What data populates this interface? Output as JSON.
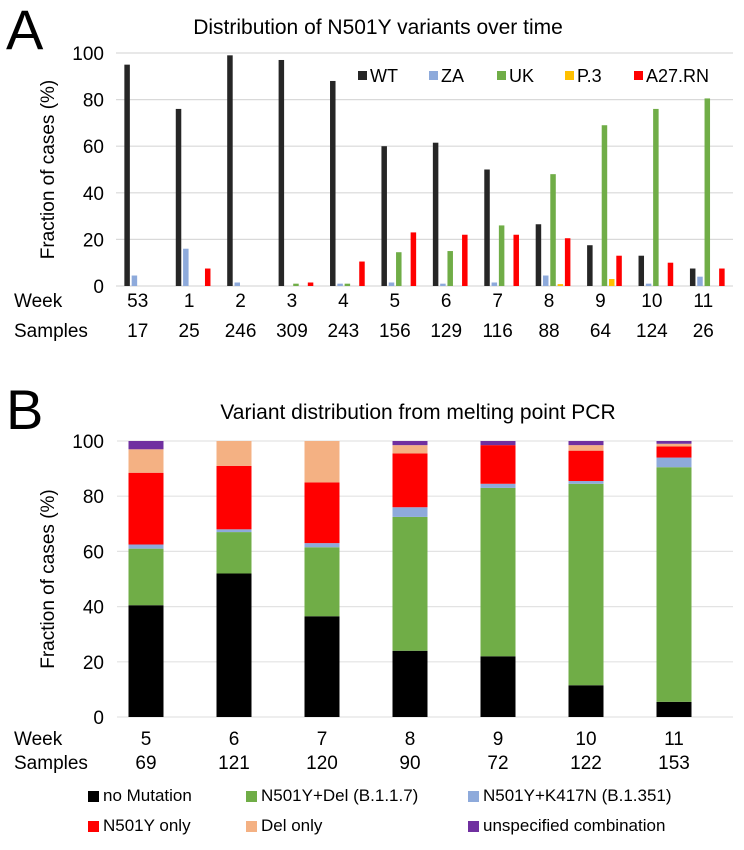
{
  "chart_data": [
    {
      "panel": "A",
      "type": "bar",
      "title": "Distribution of N501Y variants over time",
      "ylabel": "Fraction of cases (%)",
      "xlabel": "",
      "ylim": [
        0,
        100
      ],
      "yticks": [
        0,
        20,
        40,
        60,
        80,
        100
      ],
      "grid": true,
      "legend_position": "top-right",
      "row_labels": [
        "Week",
        "Samples"
      ],
      "categories": [
        "53",
        "1",
        "2",
        "3",
        "4",
        "5",
        "6",
        "7",
        "8",
        "9",
        "10",
        "11"
      ],
      "samples": [
        "17",
        "25",
        "246",
        "309",
        "243",
        "156",
        "129",
        "116",
        "88",
        "64",
        "124",
        "26"
      ],
      "series": [
        {
          "name": "WT",
          "color": "#262626",
          "values": [
            95,
            76,
            99,
            97,
            88,
            60,
            61.5,
            50,
            26.5,
            17.5,
            13,
            7.5
          ]
        },
        {
          "name": "ZA",
          "color": "#8eaadb",
          "values": [
            4.5,
            16,
            1.5,
            0,
            1,
            1.5,
            1,
            1.5,
            4.5,
            0,
            1,
            4
          ]
        },
        {
          "name": "UK",
          "color": "#70ad47",
          "values": [
            0,
            0,
            0,
            1,
            1,
            14.5,
            15,
            26,
            48,
            69,
            76,
            80.5
          ]
        },
        {
          "name": "P.3",
          "color": "#ffc000",
          "values": [
            0,
            0,
            0,
            0,
            0,
            0,
            0,
            0,
            0.8,
            3,
            0,
            0
          ]
        },
        {
          "name": "A27.RN",
          "color": "#ff0000",
          "values": [
            0,
            7.5,
            0,
            1.5,
            10.5,
            23,
            22,
            22,
            20.5,
            13,
            10,
            7.5
          ]
        }
      ]
    },
    {
      "panel": "B",
      "type": "bar",
      "stacked": true,
      "title": "Variant distribution from melting point PCR",
      "ylabel": "Fraction of cases (%)",
      "xlabel": "",
      "ylim": [
        0,
        100
      ],
      "yticks": [
        0,
        20,
        40,
        60,
        80,
        100
      ],
      "grid": true,
      "legend_position": "bottom",
      "row_labels": [
        "Week",
        "Samples"
      ],
      "categories": [
        "5",
        "6",
        "7",
        "8",
        "9",
        "10",
        "11"
      ],
      "samples": [
        "69",
        "121",
        "120",
        "90",
        "72",
        "122",
        "153"
      ],
      "series": [
        {
          "name": "no Mutation",
          "color": "#000000",
          "values": [
            40.5,
            52,
            36.5,
            24,
            22,
            11.5,
            5.5
          ]
        },
        {
          "name": "N501Y+Del (B.1.1.7)",
          "color": "#70ad47",
          "values": [
            20.5,
            15,
            25,
            48.5,
            61,
            73,
            85
          ]
        },
        {
          "name": "N501Y+K417N (B.1.351)",
          "color": "#8eaadb",
          "values": [
            1.5,
            1,
            1.5,
            3.5,
            1.5,
            1,
            3.5
          ]
        },
        {
          "name": "N501Y only",
          "color": "#ff0000",
          "values": [
            26,
            23,
            22,
            19.5,
            14,
            11,
            4
          ]
        },
        {
          "name": "Del only",
          "color": "#f4b183",
          "values": [
            8.5,
            9,
            15,
            3,
            0,
            2,
            1
          ]
        },
        {
          "name": "unspecified combination",
          "color": "#7030a0",
          "values": [
            3,
            0,
            0,
            1.5,
            1.5,
            1.5,
            1
          ]
        }
      ]
    }
  ],
  "panel_letters": {
    "a": "A",
    "b": "B"
  }
}
